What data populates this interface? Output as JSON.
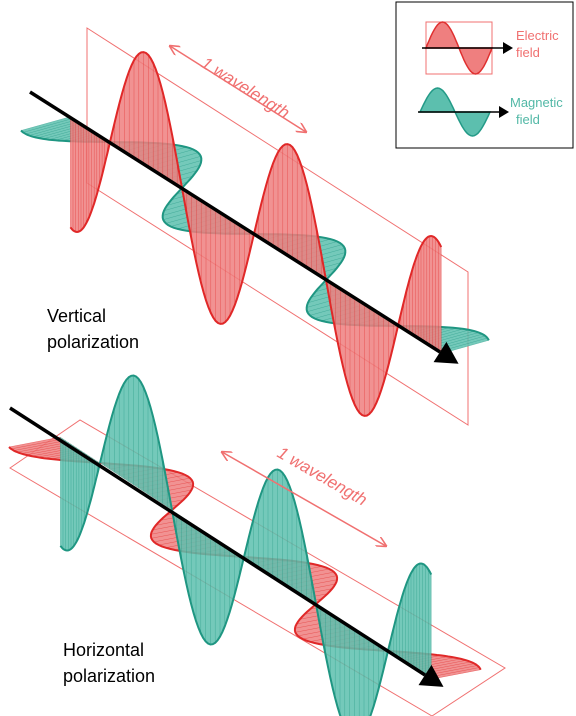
{
  "legend": {
    "electric": {
      "lines": [
        "Electric",
        "field"
      ]
    },
    "magnetic": {
      "lines": [
        "Magnetic",
        "field"
      ]
    }
  },
  "panels": [
    {
      "wavelength_label": "1 wavelength",
      "caption": [
        "Vertical",
        "polarization"
      ]
    },
    {
      "wavelength_label": "1 wavelength",
      "caption": [
        "Horizontal",
        "polarization"
      ]
    }
  ]
}
